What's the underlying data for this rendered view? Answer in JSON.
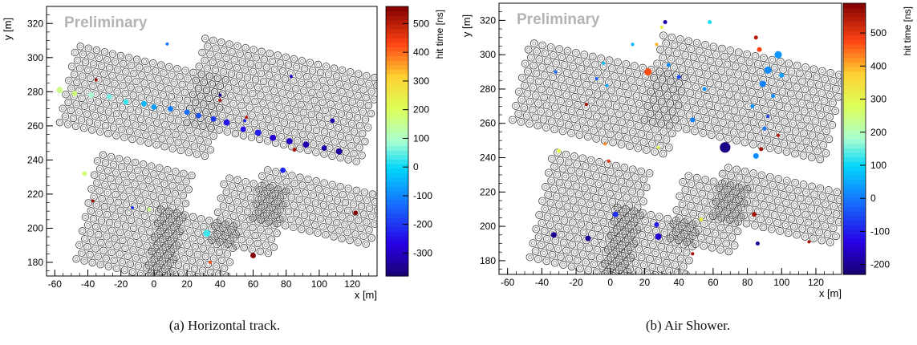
{
  "chart_data": [
    {
      "type": "scatter",
      "watermark": "Preliminary",
      "xlabel": "x [m]",
      "ylabel": "y [m]",
      "zlabel": "hit time [ns]",
      "xlim": [
        -65,
        135
      ],
      "ylim": [
        172,
        330
      ],
      "xticks": [
        -60,
        -40,
        -20,
        0,
        20,
        40,
        60,
        80,
        100,
        120
      ],
      "yticks": [
        180,
        200,
        220,
        240,
        260,
        280,
        300,
        320
      ],
      "zlim": [
        -380,
        560
      ],
      "zticks": [
        -300,
        -200,
        -100,
        0,
        100,
        200,
        300,
        400,
        500
      ],
      "caption": "(a)  Horizontal track.",
      "points": [
        {
          "x": -57,
          "y": 281,
          "t": 160,
          "r": 4
        },
        {
          "x": -48,
          "y": 279,
          "t": 170,
          "r": 3.5
        },
        {
          "x": -38,
          "y": 278,
          "t": 90,
          "r": 3.5
        },
        {
          "x": -27,
          "y": 277,
          "t": 60,
          "r": 3.5
        },
        {
          "x": -17,
          "y": 274,
          "t": 30,
          "r": 3.5
        },
        {
          "x": -6,
          "y": 273,
          "t": -40,
          "r": 3.5
        },
        {
          "x": 0,
          "y": 271,
          "t": -70,
          "r": 3.5
        },
        {
          "x": 10,
          "y": 270,
          "t": -110,
          "r": 3.5
        },
        {
          "x": 20,
          "y": 268,
          "t": -130,
          "r": 3.5
        },
        {
          "x": 27,
          "y": 266,
          "t": -160,
          "r": 3.5
        },
        {
          "x": 36,
          "y": 264,
          "t": -200,
          "r": 3.5
        },
        {
          "x": 44,
          "y": 262,
          "t": -240,
          "r": 4
        },
        {
          "x": 54,
          "y": 258,
          "t": -250,
          "r": 3.5
        },
        {
          "x": 63,
          "y": 256,
          "t": -230,
          "r": 4
        },
        {
          "x": 72,
          "y": 253,
          "t": -290,
          "r": 4
        },
        {
          "x": 82,
          "y": 251,
          "t": -300,
          "r": 4
        },
        {
          "x": 92,
          "y": 249,
          "t": -320,
          "r": 4
        },
        {
          "x": 103,
          "y": 247,
          "t": -330,
          "r": 3.5
        },
        {
          "x": 112,
          "y": 245,
          "t": -340,
          "r": 4
        },
        {
          "x": 108,
          "y": 263,
          "t": -320,
          "r": 3
        },
        {
          "x": 85,
          "y": 246,
          "t": 520,
          "r": 2.5
        },
        {
          "x": 78,
          "y": 234,
          "t": -220,
          "r": 3.5
        },
        {
          "x": 56,
          "y": 265,
          "t": 500,
          "r": 2
        },
        {
          "x": 55,
          "y": 263,
          "t": -220,
          "r": 2
        },
        {
          "x": 40,
          "y": 278,
          "t": -350,
          "r": 2
        },
        {
          "x": 40,
          "y": 275,
          "t": 520,
          "r": 2
        },
        {
          "x": 8,
          "y": 308,
          "t": -120,
          "r": 2
        },
        {
          "x": -35,
          "y": 287,
          "t": 540,
          "r": 2
        },
        {
          "x": 83,
          "y": 289,
          "t": -300,
          "r": 2
        },
        {
          "x": -42,
          "y": 232,
          "t": 180,
          "r": 3
        },
        {
          "x": -37,
          "y": 216,
          "t": 540,
          "r": 2
        },
        {
          "x": -13,
          "y": 212,
          "t": -200,
          "r": 2
        },
        {
          "x": -3,
          "y": 211,
          "t": 160,
          "r": 2.5
        },
        {
          "x": 32,
          "y": 197,
          "t": 30,
          "r": 4.5
        },
        {
          "x": 34,
          "y": 180,
          "t": 420,
          "r": 2
        },
        {
          "x": 60,
          "y": 184,
          "t": 560,
          "r": 3.5
        },
        {
          "x": 122,
          "y": 209,
          "t": 560,
          "r": 3
        }
      ]
    },
    {
      "type": "scatter",
      "watermark": "Preliminary",
      "xlabel": "x [m]",
      "ylabel": "y [m]",
      "zlabel": "hit time [ns]",
      "xlim": [
        -65,
        135
      ],
      "ylim": [
        172,
        330
      ],
      "xticks": [
        -60,
        -40,
        -20,
        0,
        20,
        40,
        60,
        80,
        100,
        120
      ],
      "yticks": [
        180,
        200,
        220,
        240,
        260,
        280,
        300,
        320
      ],
      "zlim": [
        -230,
        590
      ],
      "zticks": [
        -200,
        -100,
        0,
        100,
        200,
        300,
        400,
        500
      ],
      "caption": "(b)  Air Shower.",
      "points": [
        {
          "x": 67,
          "y": 246,
          "t": -210,
          "r": 6.5
        },
        {
          "x": 22,
          "y": 290,
          "t": 470,
          "r": 4.5
        },
        {
          "x": 98,
          "y": 300,
          "t": 30,
          "r": 4.5
        },
        {
          "x": 92,
          "y": 291,
          "t": 20,
          "r": 4.5
        },
        {
          "x": 89,
          "y": 283,
          "t": 10,
          "r": 4
        },
        {
          "x": 87,
          "y": 303,
          "t": 480,
          "r": 3
        },
        {
          "x": 85,
          "y": 310,
          "t": 540,
          "r": 2.5
        },
        {
          "x": 100,
          "y": 288,
          "t": 40,
          "r": 3
        },
        {
          "x": 95,
          "y": 276,
          "t": 20,
          "r": 2.5
        },
        {
          "x": 83,
          "y": 270,
          "t": 30,
          "r": 2.5
        },
        {
          "x": 85,
          "y": 241,
          "t": 20,
          "r": 3.5
        },
        {
          "x": 90,
          "y": 257,
          "t": 0,
          "r": 2.5
        },
        {
          "x": 88,
          "y": 245,
          "t": 560,
          "r": 2.5
        },
        {
          "x": 92,
          "y": 264,
          "t": -60,
          "r": 2
        },
        {
          "x": 98,
          "y": 253,
          "t": 540,
          "r": 2
        },
        {
          "x": 48,
          "y": 262,
          "t": 10,
          "r": 3
        },
        {
          "x": 55,
          "y": 280,
          "t": 30,
          "r": 2.5
        },
        {
          "x": 40,
          "y": 287,
          "t": -40,
          "r": 2.5
        },
        {
          "x": 34,
          "y": 294,
          "t": 20,
          "r": 2.5
        },
        {
          "x": 32,
          "y": 319,
          "t": -180,
          "r": 2.5
        },
        {
          "x": 30,
          "y": 316,
          "t": 320,
          "r": 2
        },
        {
          "x": 58,
          "y": 319,
          "t": 110,
          "r": 2.5
        },
        {
          "x": 13,
          "y": 306,
          "t": 60,
          "r": 2
        },
        {
          "x": 27,
          "y": 306,
          "t": 400,
          "r": 2
        },
        {
          "x": -8,
          "y": 286,
          "t": -30,
          "r": 2
        },
        {
          "x": -2,
          "y": 282,
          "t": 40,
          "r": 2
        },
        {
          "x": -4,
          "y": 295,
          "t": 80,
          "r": 2
        },
        {
          "x": -14,
          "y": 271,
          "t": 560,
          "r": 2
        },
        {
          "x": -32,
          "y": 290,
          "t": -10,
          "r": 2
        },
        {
          "x": -30,
          "y": 244,
          "t": 300,
          "r": 2.5
        },
        {
          "x": -3,
          "y": 248,
          "t": 430,
          "r": 2
        },
        {
          "x": -1,
          "y": 238,
          "t": 500,
          "r": 2
        },
        {
          "x": 28,
          "y": 246,
          "t": 300,
          "r": 2
        },
        {
          "x": 3,
          "y": 207,
          "t": -80,
          "r": 3.5
        },
        {
          "x": 28,
          "y": 194,
          "t": -150,
          "r": 4
        },
        {
          "x": 27,
          "y": 201,
          "t": -100,
          "r": 3
        },
        {
          "x": 53,
          "y": 204,
          "t": 320,
          "r": 2.5
        },
        {
          "x": -33,
          "y": 195,
          "t": -200,
          "r": 3.5
        },
        {
          "x": -13,
          "y": 193,
          "t": -200,
          "r": 3.5
        },
        {
          "x": 84,
          "y": 207,
          "t": 560,
          "r": 3
        },
        {
          "x": 86,
          "y": 190,
          "t": -200,
          "r": 2.5
        },
        {
          "x": 116,
          "y": 191,
          "t": 560,
          "r": 2
        },
        {
          "x": 48,
          "y": 184,
          "t": 560,
          "r": 2
        }
      ]
    }
  ]
}
